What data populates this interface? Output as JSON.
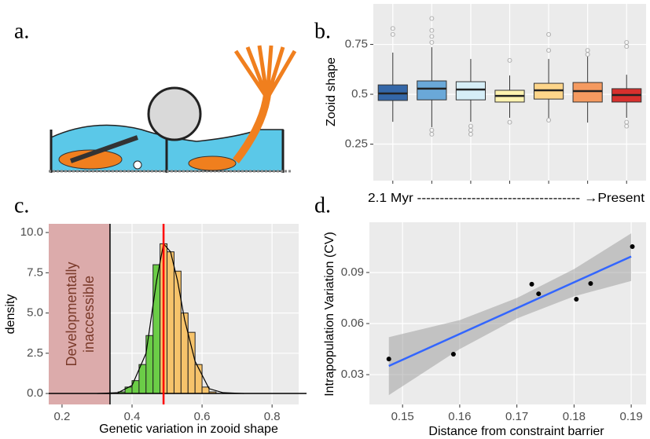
{
  "panel_a": {
    "label": "a."
  },
  "chart_data": [
    {
      "type": "box",
      "panel_label": "b.",
      "ylabel": "Zooid shape",
      "xlabel": "2.1 Myr ------------------------------------ →Present",
      "categories": [
        null,
        null,
        null,
        null,
        null,
        null,
        null
      ],
      "ylim": [
        0.067,
        0.953
      ],
      "yticks": [
        0.25,
        0.5,
        0.75
      ],
      "grid": true,
      "boxes": [
        {
          "color": "#3467a8",
          "low": 0.362,
          "q1": 0.469,
          "median": 0.504,
          "q3": 0.547,
          "high": 0.709,
          "outliers": [
            0.8,
            0.83
          ]
        },
        {
          "color": "#6aa8d8",
          "low": 0.335,
          "q1": 0.472,
          "median": 0.528,
          "q3": 0.567,
          "high": 0.736,
          "outliers": [
            0.3,
            0.32,
            0.76,
            0.79,
            0.82,
            0.88
          ]
        },
        {
          "color": "#d6eef7",
          "low": 0.362,
          "q1": 0.472,
          "median": 0.524,
          "q3": 0.563,
          "high": 0.677,
          "outliers": [
            0.3,
            0.32,
            0.34
          ]
        },
        {
          "color": "#fff3b0",
          "low": 0.382,
          "q1": 0.461,
          "median": 0.492,
          "q3": 0.52,
          "high": 0.594,
          "outliers": [
            0.36,
            0.67
          ]
        },
        {
          "color": "#fdd58a",
          "low": 0.382,
          "q1": 0.476,
          "median": 0.52,
          "q3": 0.555,
          "high": 0.677,
          "outliers": [
            0.37,
            0.72,
            0.8
          ]
        },
        {
          "color": "#f59a60",
          "low": 0.358,
          "q1": 0.461,
          "median": 0.516,
          "q3": 0.559,
          "high": 0.689,
          "outliers": [
            0.7,
            0.72
          ]
        },
        {
          "color": "#d7302d",
          "low": 0.382,
          "q1": 0.461,
          "median": 0.496,
          "q3": 0.528,
          "high": 0.598,
          "outliers": [
            0.34,
            0.36,
            0.74,
            0.76
          ]
        }
      ]
    },
    {
      "type": "histogram",
      "panel_label": "c.",
      "ylabel": "density",
      "xlabel": "Genetic variation in zooid shape",
      "annotation": [
        "Developmentally",
        "inaccessible"
      ],
      "xlim": [
        0.162,
        0.876
      ],
      "xticks": [
        0.2,
        0.4,
        0.6,
        0.8
      ],
      "ylim": [
        -0.68,
        10.54
      ],
      "yticks": [
        {
          "value": 0,
          "label": "0.0"
        },
        2.5,
        {
          "value": 5,
          "label": "5.0"
        },
        7.5,
        {
          "value": 10,
          "label": "10.0"
        }
      ],
      "grid": true,
      "bins": [
        0.36,
        0.38,
        0.4,
        0.42,
        0.44,
        0.46,
        0.48,
        0.5,
        0.52,
        0.54,
        0.56,
        0.58,
        0.6,
        0.62,
        0.64
      ],
      "counts": [
        0.1,
        0.4,
        0.8,
        1.8,
        3.6,
        8.0,
        9.3,
        8.8,
        7.6,
        5.0,
        3.8,
        1.8,
        0.4,
        0.1
      ],
      "bar_colors": [
        "#6bcd47",
        "#f6c36b"
      ],
      "density_curve": {
        "x": [
          0.3,
          0.36,
          0.4,
          0.44,
          0.47,
          0.49,
          0.51,
          0.53,
          0.55,
          0.58,
          0.62,
          0.66,
          0.72
        ],
        "y": [
          0,
          0.05,
          0.5,
          2.5,
          7,
          9.3,
          8.8,
          7,
          4.6,
          2.0,
          0.3,
          0.05,
          0
        ]
      },
      "threshold_line": {
        "value": 0.337,
        "color": "#000000"
      },
      "mean_line": {
        "value": 0.49,
        "color": "#ff0000"
      },
      "inaccessible_color": "#dcabab"
    },
    {
      "type": "scatter",
      "panel_label": "d.",
      "ylabel": "Intrapopulation Variation (CV)",
      "xlabel": "Distance from constraint barrier",
      "xlim": [
        0.1442,
        0.1926
      ],
      "xticks": [
        0.15,
        0.16,
        0.17,
        0.18,
        0.19
      ],
      "ylim": [
        0.0125,
        0.1195
      ],
      "yticks": [
        0.03,
        0.06,
        0.09
      ],
      "grid": true,
      "x": [
        0.1476,
        0.1589,
        0.1726,
        0.1738,
        0.1804,
        0.1829,
        0.1902
      ],
      "y": [
        0.0392,
        0.042,
        0.0831,
        0.0775,
        0.0743,
        0.0835,
        0.1052
      ],
      "point_color": "#000000",
      "fit": {
        "x": [
          0.1476,
          0.19
        ],
        "y": [
          0.0351,
          0.0994
        ],
        "color": "#3366ff"
      },
      "ci": {
        "x": [
          0.1476,
          0.16,
          0.17,
          0.18,
          0.19
        ],
        "lower": [
          0.018,
          0.045,
          0.063,
          0.076,
          0.085
        ],
        "upper": [
          0.052,
          0.062,
          0.075,
          0.092,
          0.113
        ],
        "color": "#999999"
      }
    }
  ]
}
